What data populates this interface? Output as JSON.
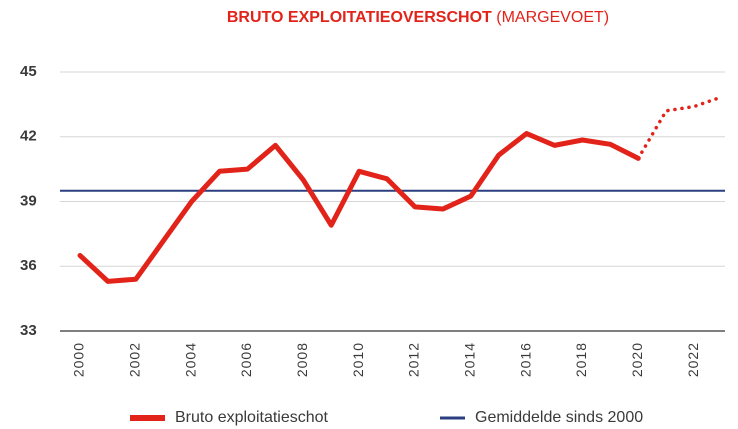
{
  "chart_data": {
    "type": "line",
    "title": "BRUTO EXPLOITATIEOVERSCHOT",
    "subtitle": "(MARGEVOET)",
    "categories": [
      "2000",
      null,
      "2002",
      null,
      "2004",
      null,
      "2006",
      null,
      "2008",
      null,
      "2010",
      null,
      "2012",
      null,
      "2014",
      null,
      "2016",
      null,
      "2018",
      null,
      "2020",
      null,
      "2022",
      null
    ],
    "series": [
      {
        "name": "Bruto exploitatieschot",
        "color": "#e2231a",
        "values": [
          36.5,
          35.3,
          35.4,
          37.2,
          39.0,
          40.4,
          40.5,
          41.6,
          40.0,
          37.9,
          40.4,
          40.05,
          38.75,
          38.65,
          39.25,
          41.15,
          42.15,
          41.6,
          41.85,
          41.65,
          41.0,
          43.2,
          43.4,
          43.85
        ],
        "dotted_from": "2020"
      }
    ],
    "reference_line": {
      "name": "Gemiddelde sinds 2000",
      "color": "#2b3f80",
      "value": 39.5
    },
    "ylim": [
      33,
      45
    ],
    "yticks": [
      33,
      36,
      39,
      42,
      45
    ],
    "grid": true
  }
}
